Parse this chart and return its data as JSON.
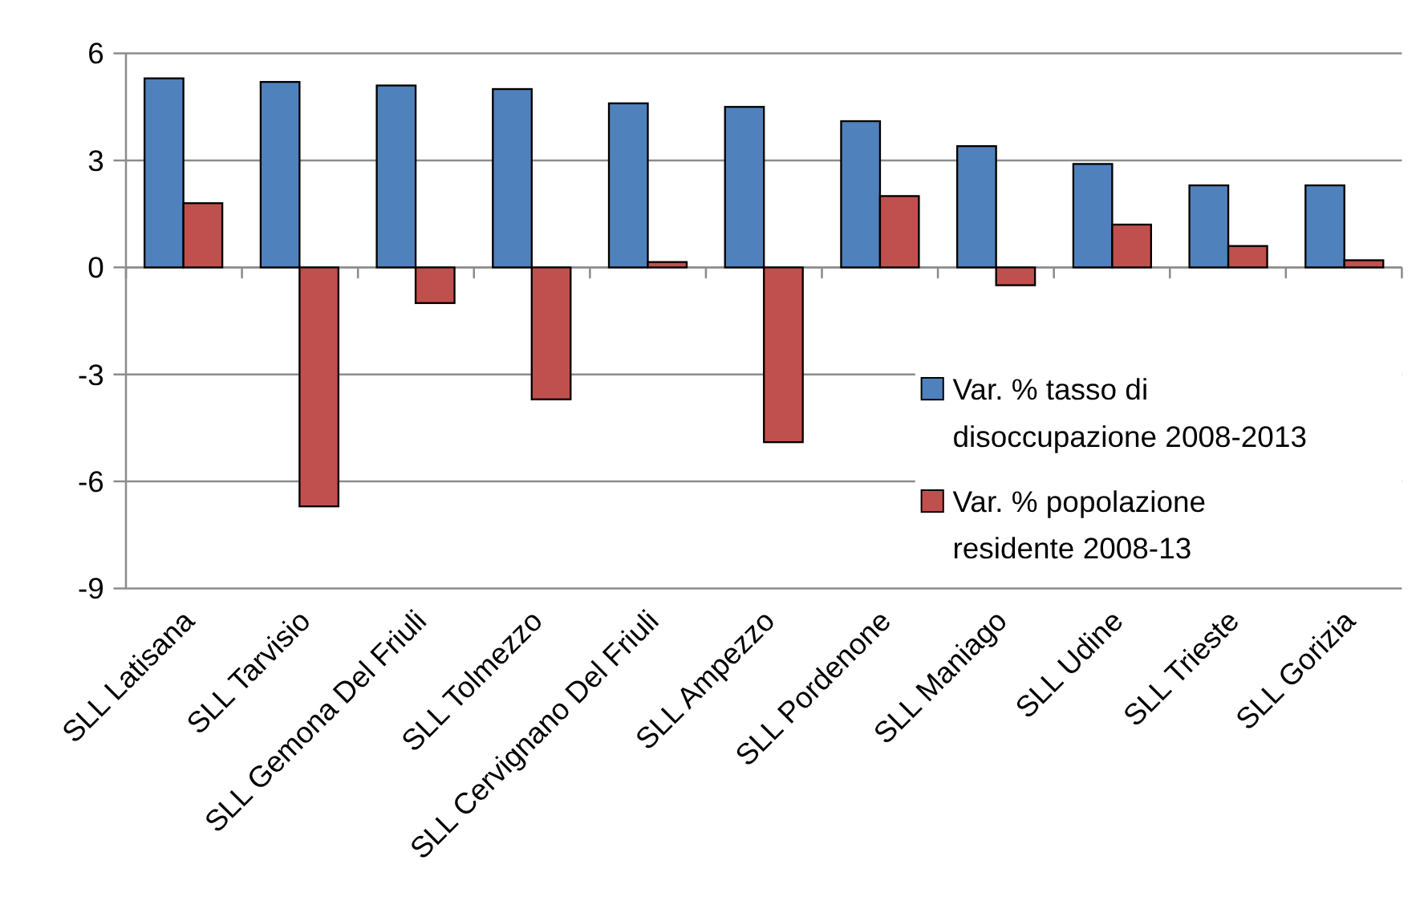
{
  "chart_data": {
    "type": "bar",
    "categories": [
      "SLL Latisana",
      "SLL Tarvisio",
      "SLL Gemona Del Friuli",
      "SLL Tolmezzo",
      "SLL Cervignano Del Friuli",
      "SLL Ampezzo",
      "SLL Pordenone",
      "SLL Maniago",
      "SLL Udine",
      "SLL Trieste",
      "SLL Gorizia"
    ],
    "series": [
      {
        "name": "Var. % tasso di disoccupazione 2008-2013",
        "color": "#4f81bd",
        "values": [
          5.3,
          5.2,
          5.1,
          5.0,
          4.6,
          4.5,
          4.1,
          3.4,
          2.9,
          2.3,
          2.3
        ]
      },
      {
        "name": "Var. % popolazione residente 2008-13",
        "color": "#c0504d",
        "values": [
          1.8,
          -6.7,
          -1.0,
          -3.7,
          0.15,
          -4.9,
          2.0,
          -0.5,
          1.2,
          0.6,
          0.2
        ]
      }
    ],
    "ylim": [
      -9,
      6
    ],
    "yticks": [
      -9,
      -6,
      -3,
      0,
      3,
      6
    ],
    "grid": "y",
    "legend": "right"
  }
}
